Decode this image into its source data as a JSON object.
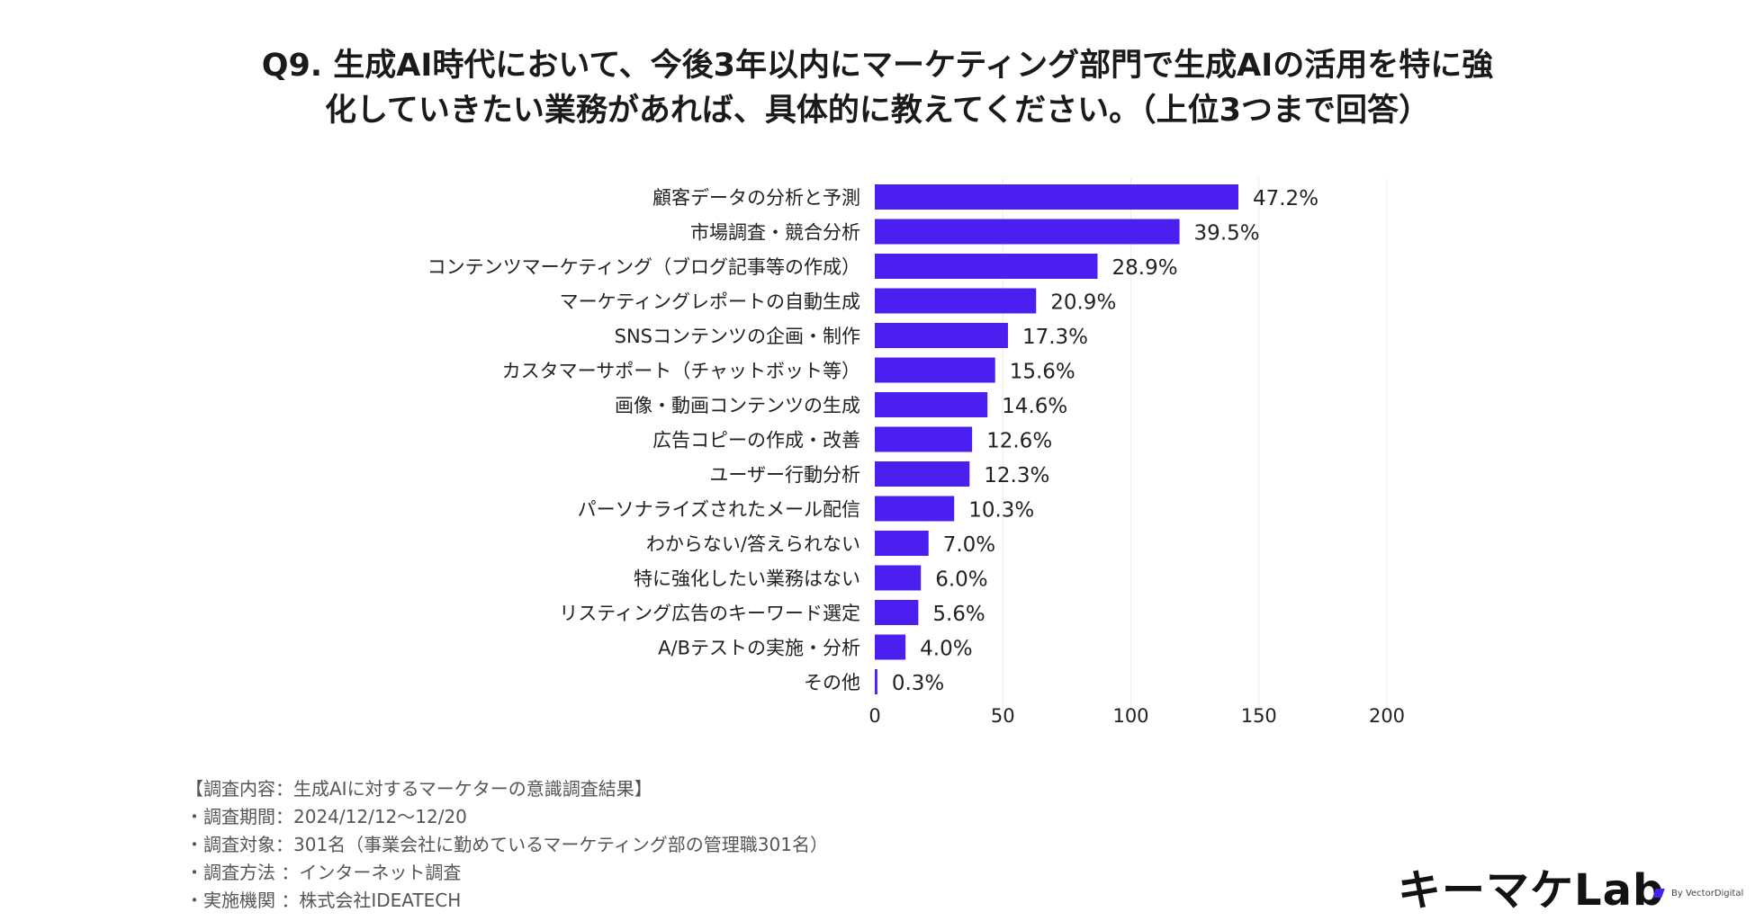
{
  "title": {
    "line1": "Q9. 生成AI時代において、今後3年以内にマーケティング部門で生成AIの活用を特に強",
    "line2": "化していきたい業務があれば、具体的に教えてください。（上位3つまで回答）"
  },
  "chart_data": {
    "type": "bar",
    "orientation": "horizontal",
    "categories": [
      "顧客データの分析と予測",
      "市場調査・競合分析",
      "コンテンツマーケティング（ブログ記事等の作成）",
      "マーケティングレポートの自動生成",
      "SNSコンテンツの企画・制作",
      "カスタマーサポート（チャットボット等）",
      "画像・動画コンテンツの生成",
      "広告コピーの作成・改善",
      "ユーザー行動分析",
      "パーソナライズされたメール配信",
      "わからない/答えられない",
      "特に強化したい業務はない",
      "リスティング広告のキーワード選定",
      "A/Bテストの実施・分析",
      "その他"
    ],
    "values": [
      142,
      119,
      87,
      63,
      52,
      47,
      44,
      38,
      37,
      31,
      21,
      18,
      17,
      12,
      1
    ],
    "data_labels": [
      "47.2%",
      "39.5%",
      "28.9%",
      "20.9%",
      "17.3%",
      "15.6%",
      "14.6%",
      "12.6%",
      "12.3%",
      "10.3%",
      "7.0%",
      "6.0%",
      "5.6%",
      "4.0%",
      "0.3%"
    ],
    "xlim": [
      0,
      200
    ],
    "xticks": [
      0,
      50,
      100,
      150,
      200
    ],
    "xtick_labels": [
      "0",
      "50",
      "100",
      "150",
      "200"
    ],
    "grid": true,
    "bar_color": "#4b1ff0"
  },
  "footer": {
    "line1": "【調査内容：生成AIに対するマーケターの意識調査結果】",
    "line2": "・調査期間：2024/12/12〜12/20",
    "line3": "・調査対象：301名（事業会社に勤めているマーケティング部の管理職301名）",
    "line4": "・調査方法 ：インターネット調査",
    "line5": "・実施機関 ：株式会社IDEATECH"
  },
  "logo": {
    "text": "キーマケLab",
    "by": "By VectorDigital",
    "accent_color": "#4b1ff0"
  }
}
